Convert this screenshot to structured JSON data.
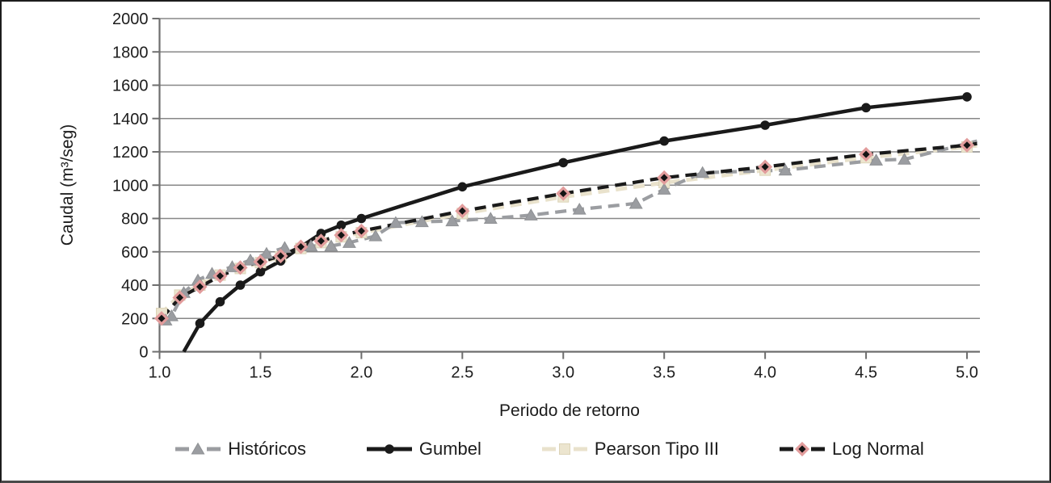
{
  "figure": {
    "y_axis_title": "Caudal (m³/seg)",
    "x_axis_title": "Periodo de retorno"
  },
  "colors": {
    "historicos_gray": "#9b9da1",
    "line_black": "#1a1a1a",
    "pearson_cream": "#e9e2cc",
    "pearson_square_fill": "#ece5cf",
    "pearson_square_stroke": "#dcd4b8",
    "lognormal_diamond_outline": "#e29c9c",
    "gridline_gray": "#878787",
    "axis_gray": "#6e6e6e",
    "text_dark": "#1c1c1c"
  },
  "chart_data": {
    "type": "line",
    "title": "",
    "xlabel": "Periodo de retorno",
    "ylabel": "Caudal (m³/seg)",
    "xlim": [
      1.0,
      5.0
    ],
    "ylim": [
      0,
      2000
    ],
    "grid": "horizontal",
    "legend_position": "bottom",
    "x_tick_values": [
      1.0,
      1.5,
      2.0,
      2.5,
      3.0,
      3.5,
      4.0,
      4.5,
      5.0
    ],
    "x_tick_labels": [
      "1.0",
      "1.5",
      "2.0",
      "2.5",
      "3.0",
      "3.5",
      "4.0",
      "4.5",
      "5.0"
    ],
    "y_tick_values": [
      0,
      200,
      400,
      600,
      800,
      1000,
      1200,
      1400,
      1600,
      1800,
      2000
    ],
    "y_tick_labels": [
      "0",
      "200",
      "400",
      "600",
      "800",
      "1000",
      "1200",
      "1400",
      "1600",
      "1800",
      "2000"
    ],
    "series": [
      {
        "name": "Pearson Tipo III",
        "style": "dashed",
        "color": "#e9e2cc",
        "line_width": 5,
        "marker": "square",
        "marker_fill": "#ece5cf",
        "marker_stroke": "#dcd4b8",
        "line_points": [
          [
            1.0,
            215
          ],
          [
            1.01,
            230
          ],
          [
            1.1,
            340
          ],
          [
            1.2,
            400
          ],
          [
            1.3,
            460
          ],
          [
            1.4,
            500
          ],
          [
            1.5,
            535
          ],
          [
            1.6,
            570
          ],
          [
            1.7,
            620
          ],
          [
            1.8,
            655
          ],
          [
            1.9,
            690
          ],
          [
            2.0,
            715
          ],
          [
            2.5,
            830
          ],
          [
            3.0,
            930
          ],
          [
            3.5,
            1015
          ],
          [
            4.0,
            1090
          ],
          [
            4.5,
            1165
          ],
          [
            5.0,
            1230
          ],
          [
            5.05,
            1238
          ]
        ],
        "marker_points": [
          [
            1.01,
            230
          ],
          [
            1.1,
            340
          ],
          [
            1.2,
            400
          ],
          [
            1.3,
            460
          ],
          [
            1.4,
            500
          ],
          [
            1.5,
            535
          ],
          [
            1.6,
            570
          ],
          [
            1.7,
            620
          ],
          [
            1.8,
            655
          ],
          [
            1.9,
            690
          ],
          [
            2.0,
            715
          ],
          [
            2.5,
            830
          ],
          [
            3.0,
            930
          ],
          [
            3.5,
            1015
          ],
          [
            4.0,
            1090
          ],
          [
            4.5,
            1165
          ],
          [
            5.0,
            1230
          ]
        ]
      },
      {
        "name": "Históricos",
        "style": "dashed",
        "color": "#9b9da1",
        "line_width": 4.2,
        "marker": "triangle",
        "marker_fill": "#9b9da1",
        "marker_stroke": "#8f9194",
        "line_points": [
          [
            1.01,
            170
          ],
          [
            1.03,
            190
          ],
          [
            1.06,
            215
          ],
          [
            1.12,
            355
          ],
          [
            1.19,
            430
          ],
          [
            1.26,
            470
          ],
          [
            1.36,
            510
          ],
          [
            1.45,
            550
          ],
          [
            1.53,
            590
          ],
          [
            1.62,
            625
          ],
          [
            1.75,
            635
          ],
          [
            1.85,
            635
          ],
          [
            1.94,
            655
          ],
          [
            2.07,
            695
          ],
          [
            2.17,
            775
          ],
          [
            2.3,
            780
          ],
          [
            2.45,
            785
          ],
          [
            2.64,
            800
          ],
          [
            2.84,
            820
          ],
          [
            3.08,
            855
          ],
          [
            3.36,
            890
          ],
          [
            3.5,
            975
          ],
          [
            3.69,
            1075
          ],
          [
            4.1,
            1090
          ],
          [
            4.55,
            1150
          ],
          [
            4.69,
            1155
          ],
          [
            5.05,
            1265
          ]
        ],
        "marker_points": [
          [
            1.03,
            190
          ],
          [
            1.06,
            215
          ],
          [
            1.12,
            355
          ],
          [
            1.19,
            430
          ],
          [
            1.26,
            470
          ],
          [
            1.36,
            510
          ],
          [
            1.45,
            550
          ],
          [
            1.53,
            590
          ],
          [
            1.62,
            625
          ],
          [
            1.75,
            635
          ],
          [
            1.85,
            635
          ],
          [
            1.94,
            655
          ],
          [
            2.07,
            695
          ],
          [
            2.17,
            775
          ],
          [
            2.3,
            780
          ],
          [
            2.45,
            785
          ],
          [
            2.64,
            800
          ],
          [
            2.84,
            820
          ],
          [
            3.08,
            855
          ],
          [
            3.36,
            890
          ],
          [
            3.5,
            975
          ],
          [
            3.69,
            1075
          ],
          [
            4.1,
            1090
          ],
          [
            4.55,
            1150
          ],
          [
            4.69,
            1155
          ]
        ]
      },
      {
        "name": "Gumbel",
        "style": "solid",
        "color": "#1a1a1a",
        "line_width": 4.5,
        "marker": "circle",
        "marker_fill": "#1a1a1a",
        "marker_stroke": "#1a1a1a",
        "line_points": [
          [
            1.12,
            0
          ],
          [
            1.2,
            170
          ],
          [
            1.3,
            300
          ],
          [
            1.4,
            400
          ],
          [
            1.5,
            480
          ],
          [
            1.6,
            545
          ],
          [
            1.7,
            630
          ],
          [
            1.8,
            710
          ],
          [
            1.9,
            760
          ],
          [
            2.0,
            800
          ],
          [
            2.5,
            990
          ],
          [
            3.0,
            1135
          ],
          [
            3.5,
            1265
          ],
          [
            4.0,
            1360
          ],
          [
            4.5,
            1465
          ],
          [
            5.0,
            1530
          ]
        ],
        "marker_points": [
          [
            1.2,
            170
          ],
          [
            1.3,
            300
          ],
          [
            1.4,
            400
          ],
          [
            1.5,
            480
          ],
          [
            1.6,
            545
          ],
          [
            1.7,
            630
          ],
          [
            1.8,
            710
          ],
          [
            1.9,
            760
          ],
          [
            2.0,
            800
          ],
          [
            2.5,
            990
          ],
          [
            3.0,
            1135
          ],
          [
            3.5,
            1265
          ],
          [
            4.0,
            1360
          ],
          [
            4.5,
            1465
          ],
          [
            5.0,
            1530
          ]
        ]
      },
      {
        "name": "Log Normal",
        "style": "dashed",
        "color": "#1a1a1a",
        "line_width": 4.2,
        "marker": "diamond",
        "marker_fill": "#141414",
        "marker_stroke": "#e29c9c",
        "line_points": [
          [
            1.01,
            200
          ],
          [
            1.1,
            325
          ],
          [
            1.2,
            390
          ],
          [
            1.3,
            455
          ],
          [
            1.4,
            505
          ],
          [
            1.5,
            540
          ],
          [
            1.6,
            575
          ],
          [
            1.7,
            630
          ],
          [
            1.8,
            665
          ],
          [
            1.9,
            700
          ],
          [
            2.0,
            725
          ],
          [
            2.5,
            845
          ],
          [
            3.0,
            950
          ],
          [
            3.5,
            1045
          ],
          [
            4.0,
            1110
          ],
          [
            4.5,
            1185
          ],
          [
            5.0,
            1240
          ],
          [
            5.05,
            1250
          ]
        ],
        "marker_points": [
          [
            1.01,
            200
          ],
          [
            1.1,
            325
          ],
          [
            1.2,
            390
          ],
          [
            1.3,
            455
          ],
          [
            1.4,
            505
          ],
          [
            1.5,
            540
          ],
          [
            1.6,
            575
          ],
          [
            1.7,
            630
          ],
          [
            1.8,
            665
          ],
          [
            1.9,
            700
          ],
          [
            2.0,
            725
          ],
          [
            2.5,
            845
          ],
          [
            3.0,
            950
          ],
          [
            3.5,
            1045
          ],
          [
            4.0,
            1110
          ],
          [
            4.5,
            1185
          ],
          [
            5.0,
            1240
          ]
        ]
      }
    ]
  },
  "legend": {
    "order_note": "display order left-to-right",
    "items": [
      "Históricos",
      "Gumbel",
      "Pearson Tipo III",
      "Log Normal"
    ]
  }
}
